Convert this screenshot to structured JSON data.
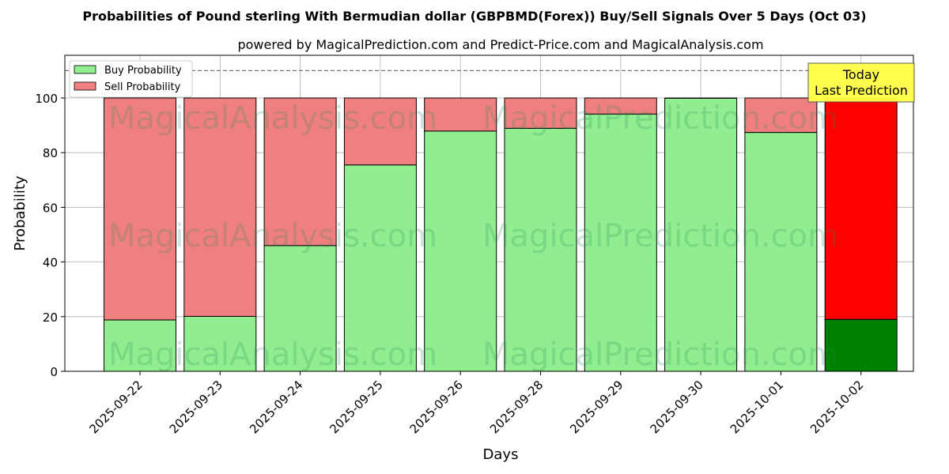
{
  "chart_data": {
    "type": "bar",
    "stacked": true,
    "title": "Probabilities of Pound sterling With Bermudian dollar (GBPBMD(Forex)) Buy/Sell Signals Over 5 Days (Oct 03)",
    "subtitle": "powered by MagicalPrediction.com and Predict-Price.com and MagicalAnalysis.com",
    "xlabel": "Days",
    "ylabel": "Probability",
    "ylim": [
      0,
      115
    ],
    "yticks": [
      0,
      20,
      40,
      60,
      80,
      100
    ],
    "reference_line": 110,
    "grid": true,
    "legend_placement": "top-left",
    "categories": [
      "2025-09-22",
      "2025-09-23",
      "2025-09-24",
      "2025-09-25",
      "2025-09-26",
      "2025-09-28",
      "2025-09-29",
      "2025-09-30",
      "2025-10-01",
      "2025-10-02"
    ],
    "series": [
      {
        "name": "Buy Probability",
        "color": "#90ee90",
        "values": [
          18.8,
          20.1,
          46.0,
          75.5,
          87.9,
          88.9,
          94.1,
          99.9,
          87.4,
          19.0
        ]
      },
      {
        "name": "Sell Probability",
        "color": "#f08080",
        "values": [
          81.2,
          79.9,
          54.0,
          24.5,
          12.1,
          11.1,
          5.9,
          0.1,
          12.6,
          81.0
        ]
      }
    ],
    "highlight": {
      "index": 9,
      "buy_color": "#008000",
      "sell_color": "#ff0000"
    },
    "annotation": {
      "line1": "Today",
      "line2": "Last Prediction"
    },
    "watermarks": [
      "MagicalAnalysis.com",
      "MagicalPrediction.com"
    ]
  }
}
